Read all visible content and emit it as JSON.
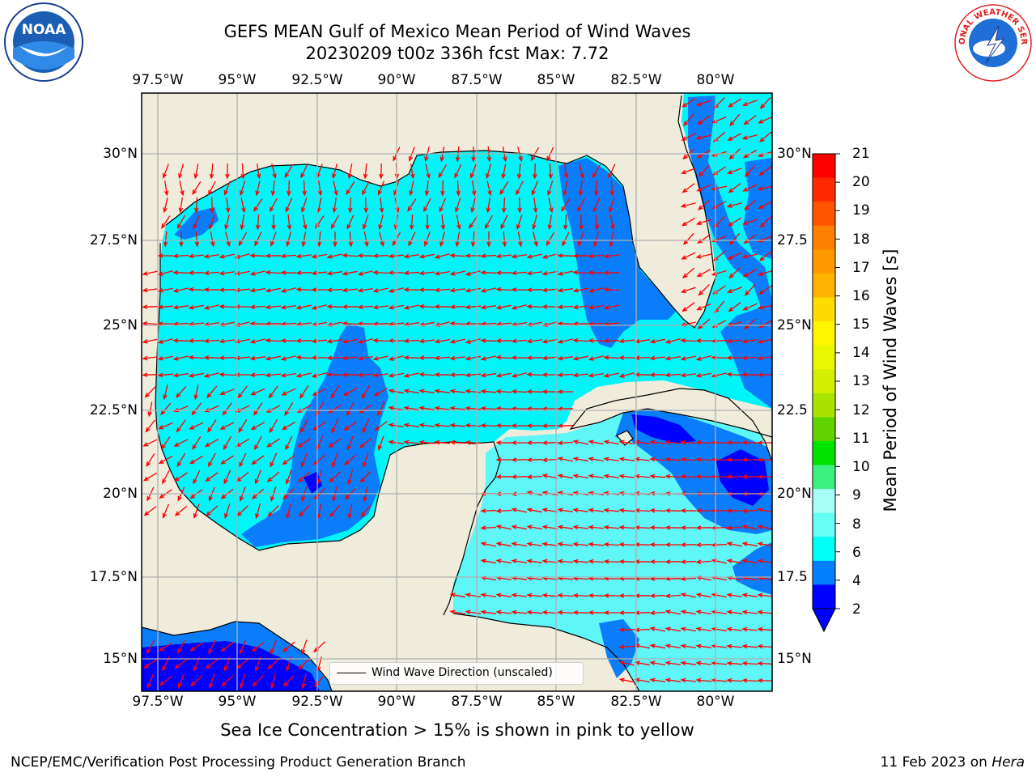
{
  "title": {
    "line1": "GEFS MEAN Gulf of Mexico Mean Period of Wind Waves",
    "line2": "20230209 t00z 336h fcst   Max: 7.72"
  },
  "axes": {
    "lon_labels": [
      "97.5°W",
      "95°W",
      "92.5°W",
      "90°W",
      "87.5°W",
      "85°W",
      "82.5°W",
      "80°W"
    ],
    "lat_labels_left": [
      "30°N",
      "27.5°N",
      "25°N",
      "22.5°N",
      "20°N",
      "17.5°N",
      "15°N"
    ],
    "lat_labels_right": [
      "30°N",
      "27.5",
      "25°N",
      "22.5",
      "20°N",
      "17.5",
      "15°N"
    ]
  },
  "colorbar": {
    "label": "Mean Period of Wind Waves [s]",
    "ticks": [
      "21",
      "20",
      "19",
      "18",
      "17",
      "16",
      "15",
      "14",
      "13",
      "12",
      "11",
      "10",
      "9",
      "8",
      "6",
      "4",
      "2"
    ],
    "colors": [
      "#ff0000",
      "#ff2a00",
      "#ff5500",
      "#ff7f00",
      "#ff9900",
      "#ffb300",
      "#ffdc00",
      "#fff500",
      "#eaf700",
      "#d2f000",
      "#a8e400",
      "#5fd400",
      "#00e300",
      "#3cf080",
      "#a6fff6",
      "#66fff5",
      "#00fff5",
      "#0080ff",
      "#0000ff"
    ],
    "extend_color": "#0000ff"
  },
  "legend": {
    "label": "Wind Wave Direction (unscaled)"
  },
  "note": "Sea Ice Concentration > 15% is shown in pink to yellow",
  "footer": {
    "left": "NCEP/EMC/Verification Post Processing Product Generation Branch",
    "right_prefix": "11 Feb 2023 on ",
    "right_host": "Hera"
  },
  "logos": {
    "left": "NOAA",
    "right": "NATIONAL WEATHER SERVICE"
  },
  "colors": {
    "land": "#efecdc",
    "water_cyan": "#00f5f8",
    "water_blue": "#0a7dfa",
    "water_deep": "#0000ff",
    "water_light": "#5ff6f8",
    "arrow": "#ff0000",
    "grid": "#b0b0b0"
  }
}
